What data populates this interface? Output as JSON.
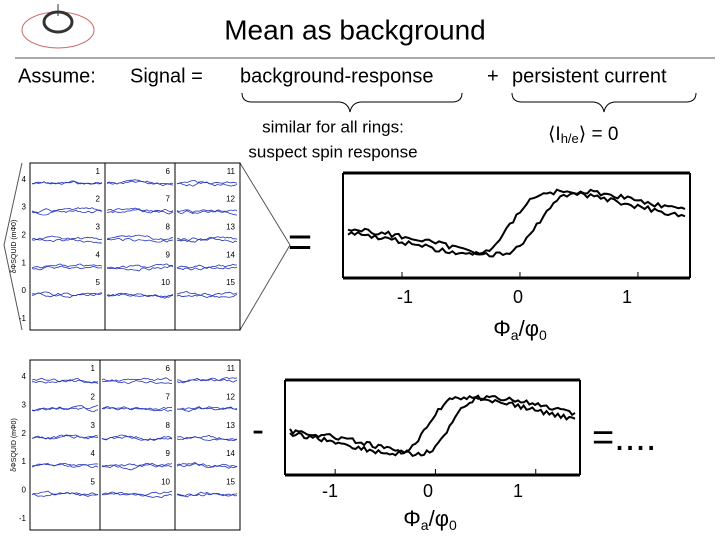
{
  "header": {
    "title": "Mean as background"
  },
  "equation": {
    "assume": "Assume:",
    "signal": "Signal =",
    "background": "background-response",
    "plus": "+",
    "persistent": "persistent current"
  },
  "notes": {
    "background": [
      "similar for all rings:",
      "suspect spin response"
    ],
    "persistent": {
      "open": "⟨I",
      "sub": "h/e",
      "close": "⟩ = 0"
    }
  },
  "top": {
    "equals": "=",
    "ticks": [
      "-1",
      "0",
      "1"
    ],
    "xlabel": {
      "main": "Φ",
      "sub": "a",
      "slash": "/φ",
      "sub0": "0"
    }
  },
  "bottom": {
    "minus": "-",
    "equals": "=....",
    "ticks": [
      "-1",
      "0",
      "1"
    ],
    "xlabel": {
      "main": "Φ",
      "sub": "a",
      "slash": "/φ",
      "sub0": "0"
    }
  },
  "panel": {
    "yticks": [
      "4",
      "3",
      "2",
      "1",
      "0",
      "-1"
    ],
    "ylabel": "δΦSQUID (mΦ0)",
    "labels": [
      "1",
      "2",
      "3",
      "4",
      "5",
      "6",
      "7",
      "8",
      "9",
      "10",
      "11",
      "12",
      "13",
      "14",
      "15"
    ]
  }
}
